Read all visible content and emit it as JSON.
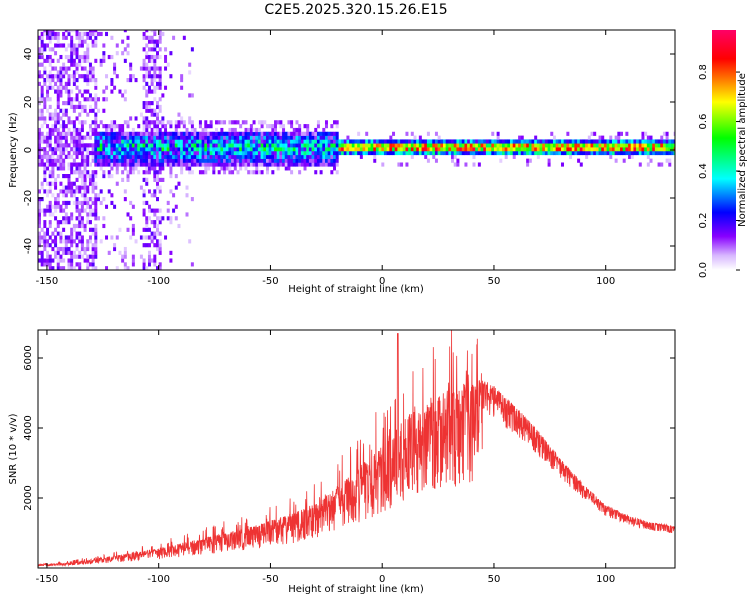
{
  "title": "C2E5.2025.320.15.26.E15",
  "colors": {
    "snr_line": "#ee3333",
    "colormap": [
      "#ffffff",
      "#d8b8ff",
      "#8800ff",
      "#0000ff",
      "#00ffff",
      "#00ff00",
      "#ffff00",
      "#ff0000",
      "#ff0066"
    ]
  },
  "chart_data": [
    {
      "type": "heatmap",
      "xlabel": "Height of straight line (km)",
      "ylabel": "Frequency (Hz)",
      "xlim": [
        -154,
        131
      ],
      "ylim": [
        -50,
        50
      ],
      "x_ticks": [
        -150,
        -100,
        -50,
        0,
        50,
        100
      ],
      "y_ticks": [
        40,
        20,
        0,
        -20,
        -40
      ],
      "grid": false,
      "colorbar": {
        "label": "Normalized spectral amplitude",
        "range": [
          0.0,
          0.97
        ],
        "ticks": [
          0.0,
          0.2,
          0.4,
          0.6,
          0.8
        ]
      },
      "description_values": {
        "ridge_center_hz": 0,
        "broadband_noise_x_range": [
          -154,
          -85
        ],
        "max_amplitude_region_x": [
          -20,
          131
        ]
      }
    },
    {
      "type": "line",
      "xlabel": "Height of straight line (km)",
      "ylabel": "SNR (10 * v/v)",
      "xlim": [
        -154,
        131
      ],
      "ylim": [
        0,
        6800
      ],
      "x_ticks": [
        -150,
        -100,
        -50,
        0,
        50,
        100
      ],
      "y_ticks": [
        2000,
        4000,
        6000
      ],
      "grid": false,
      "series": [
        {
          "x": [
            -154,
            -140,
            -130,
            -120,
            -110,
            -100,
            -90,
            -80,
            -70,
            -60,
            -50,
            -40,
            -30,
            -20,
            -10,
            0,
            5,
            7,
            10,
            20,
            30,
            40,
            45,
            50,
            60,
            70,
            80,
            90,
            100,
            110,
            120,
            131
          ],
          "y": [
            100,
            150,
            250,
            350,
            450,
            550,
            700,
            850,
            1000,
            1150,
            1350,
            1550,
            1850,
            2300,
            2900,
            3500,
            3800,
            4000,
            4300,
            4700,
            5100,
            5350,
            5400,
            5200,
            4600,
            3900,
            3100,
            2400,
            1800,
            1500,
            1300,
            1200
          ]
        }
      ],
      "annotations": {
        "spike": {
          "x": 7,
          "y": 6700
        }
      }
    }
  ]
}
